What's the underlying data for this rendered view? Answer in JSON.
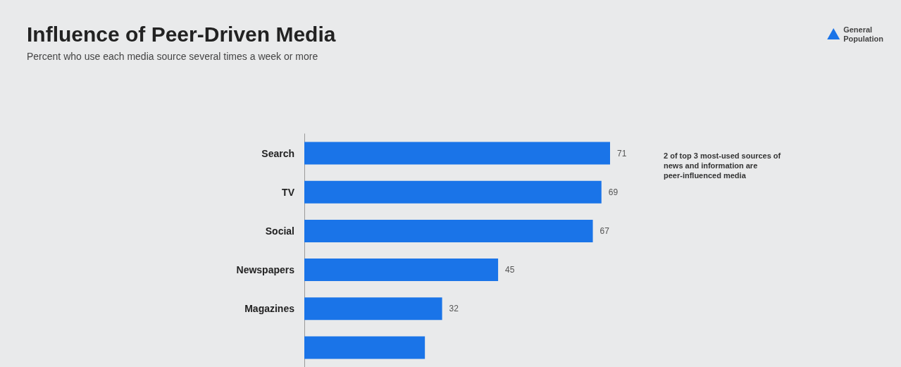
{
  "chart_data": {
    "type": "bar",
    "orientation": "horizontal",
    "title": "Influence of Peer-Driven Media",
    "subtitle": "Percent who use each media source several times a week or more",
    "categories": [
      "Search",
      "TV",
      "Social",
      "Newspapers",
      "Magazines",
      null
    ],
    "series": [
      {
        "name": "General Population",
        "color": "#1a74e8",
        "values": [
          71,
          69,
          67,
          45,
          32,
          28
        ],
        "value_labels": [
          "71",
          "69",
          "67",
          "45",
          "32",
          null
        ]
      }
    ],
    "legend": "top right",
    "annotations": [
      "2 of top 3 most-used sources of news and information are peer-influenced media"
    ]
  }
}
